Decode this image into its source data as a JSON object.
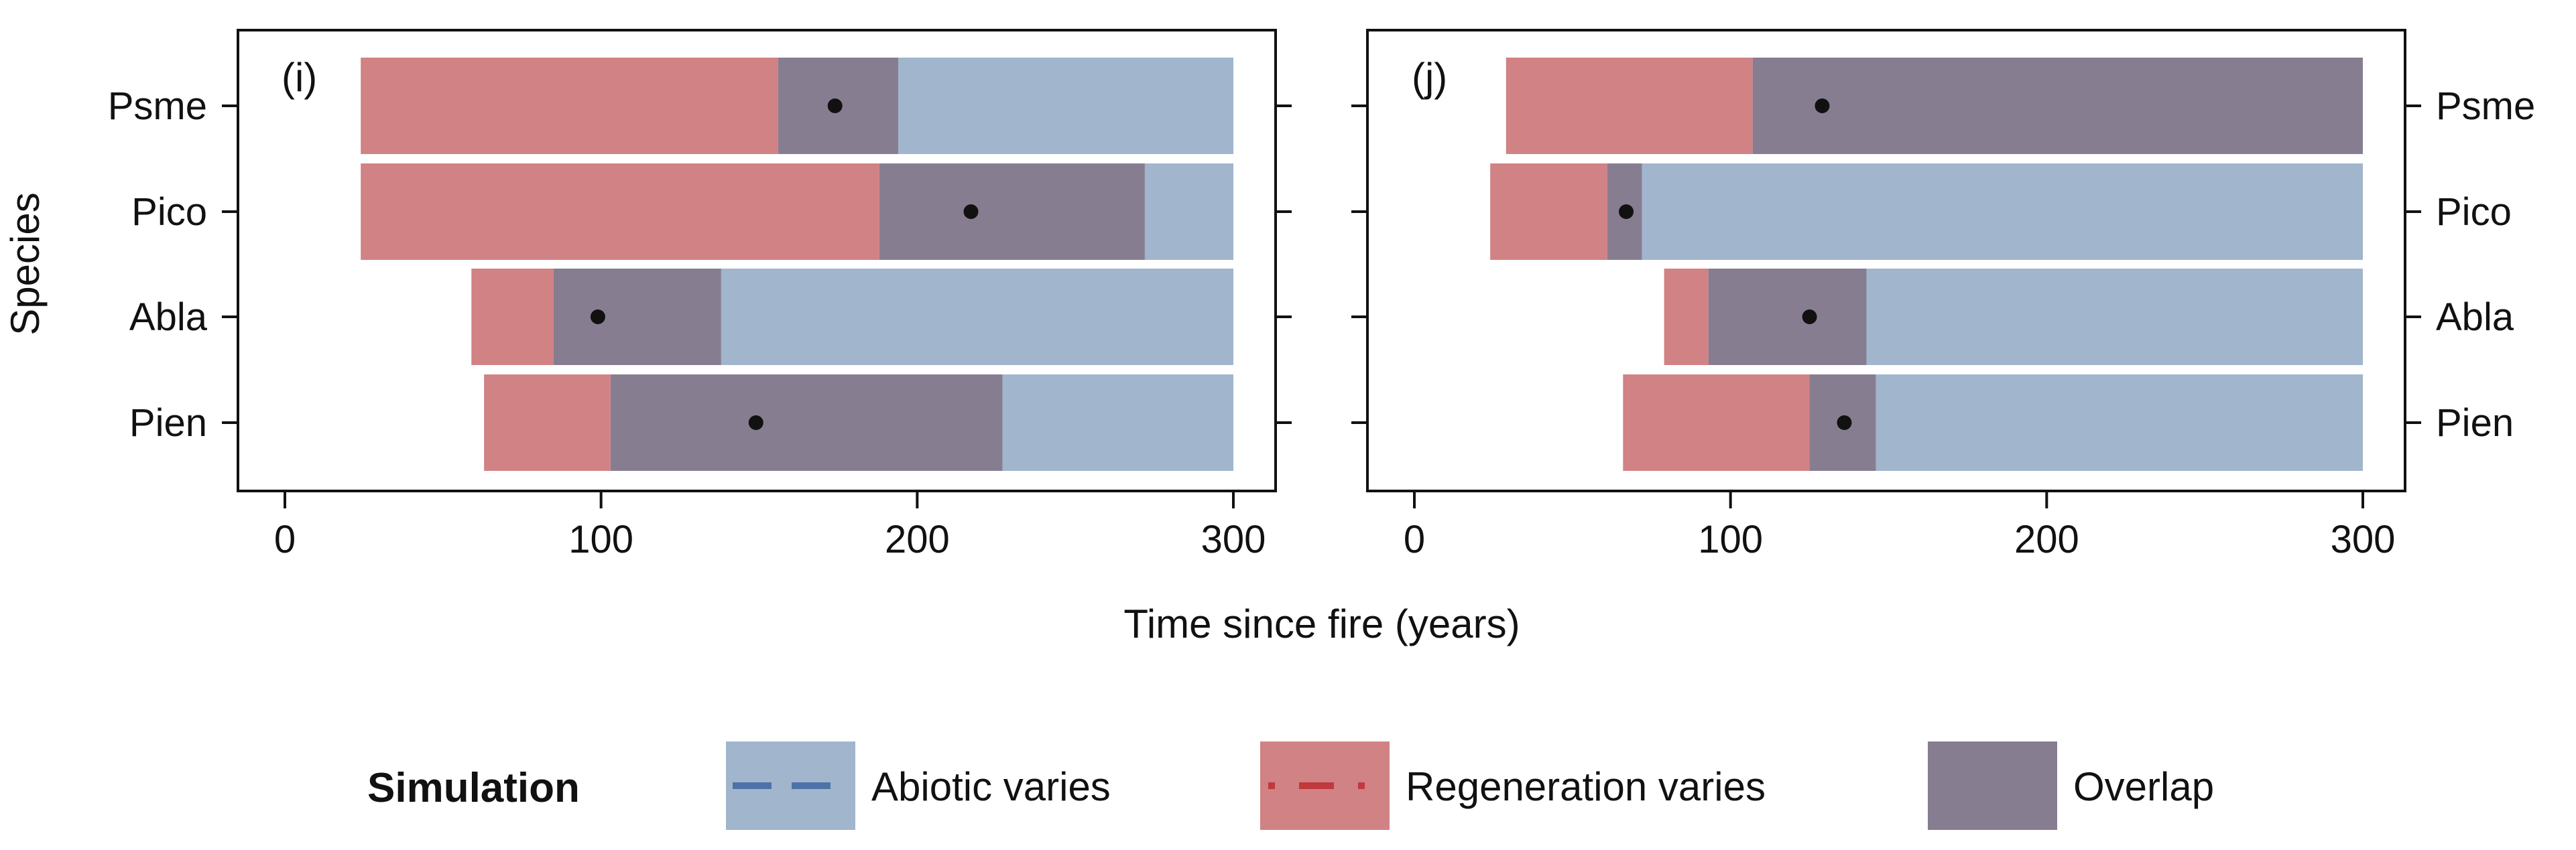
{
  "chart_data": {
    "type": "bar",
    "subtype": "horizontal-range",
    "xlabel": "Time since fire (years)",
    "ylabel": "Species",
    "xlim": [
      -15,
      315
    ],
    "xticks": [
      0,
      100,
      200,
      300
    ],
    "categories": [
      "Psme",
      "Pico",
      "Abla",
      "Pien"
    ],
    "colors": {
      "abiotic": "#a1b5cc",
      "regeneration": "#d18284",
      "overlap": "#877d90",
      "abiotic_dash": "#4e72a8",
      "regeneration_dash": "#c0393d",
      "point": "#111111"
    },
    "panels": [
      {
        "label": "(i)",
        "ylabel_side": "left",
        "bars": [
          {
            "species": "Psme",
            "regeneration": [
              24,
              156
            ],
            "overlap": [
              156,
              194
            ],
            "abiotic": [
              194,
              300
            ],
            "point": 174
          },
          {
            "species": "Pico",
            "regeneration": [
              24,
              188
            ],
            "overlap": [
              188,
              272
            ],
            "abiotic": [
              272,
              300
            ],
            "point": 217
          },
          {
            "species": "Abla",
            "regeneration": [
              59,
              85
            ],
            "overlap": [
              85,
              138
            ],
            "abiotic": [
              138,
              300
            ],
            "point": 99
          },
          {
            "species": "Pien",
            "regeneration": [
              63,
              103
            ],
            "overlap": [
              103,
              227
            ],
            "abiotic": [
              227,
              300
            ],
            "point": 149
          }
        ]
      },
      {
        "label": "(j)",
        "ylabel_side": "right",
        "bars": [
          {
            "species": "Psme",
            "regeneration": [
              29,
              107
            ],
            "overlap": [
              107,
              300
            ],
            "abiotic": null,
            "point": 129
          },
          {
            "species": "Pico",
            "regeneration": [
              24,
              61
            ],
            "overlap": [
              61,
              72
            ],
            "abiotic": [
              72,
              300
            ],
            "point": 67
          },
          {
            "species": "Abla",
            "regeneration": [
              79,
              93
            ],
            "overlap": [
              93,
              143
            ],
            "abiotic": [
              143,
              300
            ],
            "point": 125
          },
          {
            "species": "Pien",
            "regeneration": [
              66,
              125
            ],
            "overlap": [
              125,
              146
            ],
            "abiotic": [
              146,
              300
            ],
            "point": 136
          }
        ]
      }
    ],
    "legend": {
      "title": "Simulation",
      "placement": "bottom",
      "items": [
        {
          "key": "abiotic",
          "label": "Abiotic varies",
          "line": "dashed"
        },
        {
          "key": "regeneration",
          "label": "Regeneration varies",
          "line": "dotdash"
        },
        {
          "key": "overlap",
          "label": "Overlap",
          "line": "none"
        }
      ]
    }
  }
}
